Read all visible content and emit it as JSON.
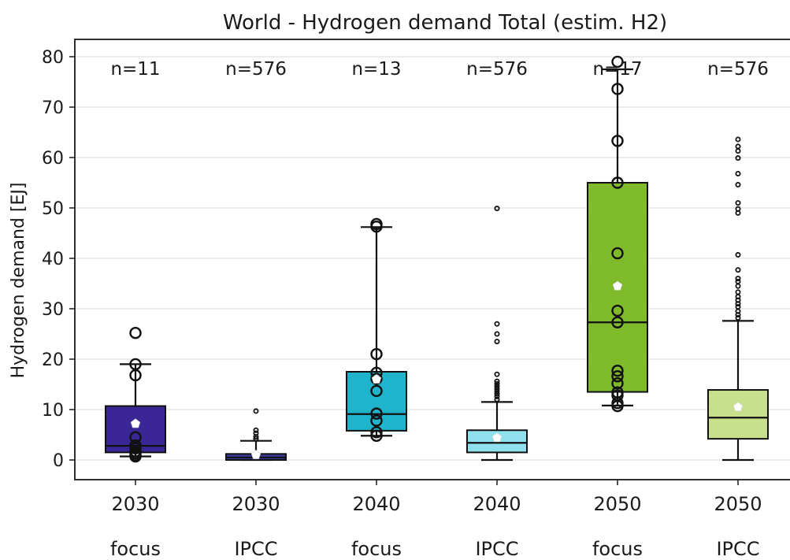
{
  "chart_data": {
    "type": "box",
    "title": "World - Hydrogen demand Total (estim. H2)",
    "xlabel": "",
    "ylabel": "Hydrogen demand [EJ]",
    "ylim": [
      -4,
      84
    ],
    "yticks": [
      0,
      10,
      20,
      30,
      40,
      50,
      60,
      70,
      80
    ],
    "grid": "horizontal",
    "legend": "none",
    "groups": [
      {
        "year": "2030",
        "label": "focus",
        "n_label": "n=11",
        "color": "#3a2795",
        "marker": "large",
        "q1": 1.5,
        "median": 2.8,
        "q3": 10.7,
        "whisker_low": 0.7,
        "whisker_high": 19.0,
        "mean": 7.2,
        "points": [
          0.7,
          0.9,
          1.3,
          1.7,
          2.3,
          2.9,
          4.5,
          16.8,
          19.0,
          25.2
        ]
      },
      {
        "year": "2030",
        "label": "IPCC",
        "n_label": "n=576",
        "color": "#3b3a9c",
        "marker": "small",
        "q1": 0.0,
        "median": 0.5,
        "q3": 1.2,
        "whisker_low": 0.0,
        "whisker_high": 3.8,
        "mean": 1.0,
        "points": [
          4.2,
          4.6,
          5.3,
          5.9,
          9.7
        ]
      },
      {
        "year": "2040",
        "label": "focus",
        "n_label": "n=13",
        "color": "#1fb3cc",
        "marker": "large",
        "q1": 5.8,
        "median": 9.1,
        "q3": 17.5,
        "whisker_low": 4.8,
        "whisker_high": 46.2,
        "mean": 16.0,
        "points": [
          4.8,
          5.5,
          7.8,
          9.2,
          13.7,
          16.1,
          17.3,
          21.0,
          46.3,
          46.8
        ]
      },
      {
        "year": "2040",
        "label": "IPCC",
        "n_label": "n=576",
        "color": "#8fe2ed",
        "marker": "small",
        "q1": 1.5,
        "median": 3.4,
        "q3": 5.9,
        "whisker_low": 0.0,
        "whisker_high": 11.5,
        "mean": 4.4,
        "points": [
          12.0,
          12.6,
          13.1,
          13.6,
          14.1,
          14.6,
          15.1,
          15.6,
          17.0,
          23.5,
          25.0,
          27.0,
          49.9
        ]
      },
      {
        "year": "2050",
        "label": "focus",
        "n_label": "n=17",
        "color": "#7fba2a",
        "marker": "large",
        "q1": 13.5,
        "median": 27.3,
        "q3": 55.0,
        "whisker_low": 10.8,
        "whisker_high": 77.5,
        "mean": 34.5,
        "points": [
          10.7,
          11.3,
          12.8,
          13.4,
          15.2,
          16.6,
          17.7,
          27.3,
          29.6,
          41.0,
          55.0,
          63.3,
          73.6,
          79.0
        ]
      },
      {
        "year": "2050",
        "label": "IPCC",
        "n_label": "n=576",
        "color": "#c8df8b",
        "marker": "small",
        "q1": 4.2,
        "median": 8.4,
        "q3": 13.9,
        "whisker_low": 0.0,
        "whisker_high": 27.6,
        "mean": 10.5,
        "points": [
          28.2,
          28.8,
          29.5,
          30.4,
          31.0,
          31.7,
          32.4,
          33.3,
          34.5,
          35.4,
          36.0,
          37.7,
          40.7,
          49.0,
          49.8,
          51.0,
          54.6,
          56.8,
          59.9,
          61.3,
          62.2,
          63.6
        ]
      }
    ]
  }
}
